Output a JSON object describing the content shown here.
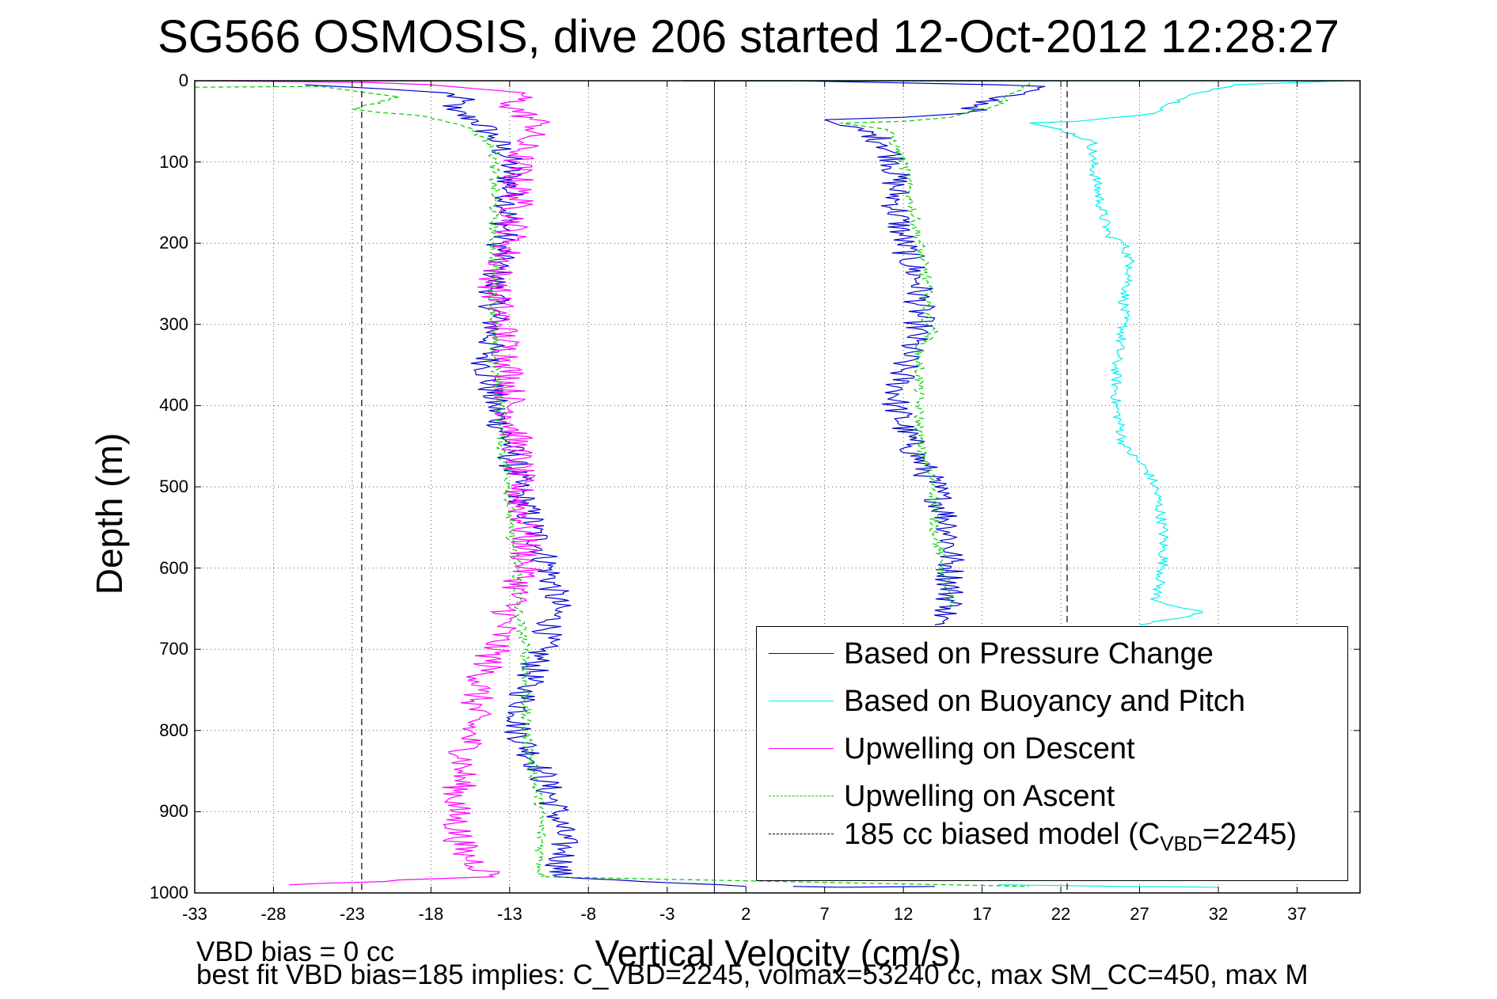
{
  "chart_data": {
    "type": "line",
    "title": "SG566 OSMOSIS, dive 206 started 12-Oct-2012 12:28:27",
    "xlabel": "Vertical Velocity (cm/s)",
    "ylabel": "Depth (m)",
    "xlim": [
      -33,
      41
    ],
    "ylim": [
      1000,
      0
    ],
    "y_reversed": true,
    "grid": true,
    "x_ticks": [
      "-33",
      "-28",
      "-23",
      "-18",
      "-13",
      "-8",
      "-3",
      "2",
      "7",
      "12",
      "17",
      "22",
      "27",
      "32",
      "37"
    ],
    "y_ticks": [
      "0",
      "100",
      "200",
      "300",
      "400",
      "500",
      "600",
      "700",
      "800",
      "900",
      "1000"
    ],
    "legend_position": "bottom-right",
    "series": [
      {
        "name": "Based on Pressure Change",
        "color": "#0000cc",
        "style": "solid",
        "segments": [
          {
            "points": [
              [
                -26,
                5
              ],
              [
                -21,
                10
              ],
              [
                -17,
                15
              ],
              [
                -16,
                25
              ],
              [
                -17,
                35
              ],
              [
                -15,
                50
              ],
              [
                -14,
                70
              ],
              [
                -13,
                100
              ],
              [
                -13,
                150
              ],
              [
                -13.5,
                200
              ],
              [
                -14,
                250
              ],
              [
                -14,
                300
              ],
              [
                -14.5,
                350
              ],
              [
                -14,
                400
              ],
              [
                -13,
                450
              ],
              [
                -12.5,
                500
              ],
              [
                -11.5,
                550
              ],
              [
                -10.5,
                600
              ],
              [
                -10,
                650
              ],
              [
                -11,
                700
              ],
              [
                -12,
                750
              ],
              [
                -12.5,
                800
              ],
              [
                -11,
                850
              ],
              [
                -10,
                900
              ],
              [
                -9.5,
                950
              ],
              [
                -10,
                980
              ],
              [
                2,
                992
              ]
            ]
          },
          {
            "points": [
              [
                -2,
                0
              ],
              [
                -0.5,
                0
              ],
              [
                5,
                0
              ],
              [
                18,
                5
              ],
              [
                21,
                7
              ],
              [
                18,
                20
              ],
              [
                16,
                40
              ],
              [
                12,
                45
              ],
              [
                7,
                48
              ],
              [
                8,
                55
              ],
              [
                10,
                65
              ],
              [
                11,
                80
              ],
              [
                11.5,
                100
              ],
              [
                11.5,
                150
              ],
              [
                12,
                200
              ],
              [
                13,
                250
              ],
              [
                13,
                300
              ],
              [
                12,
                350
              ],
              [
                11.5,
                400
              ],
              [
                12.5,
                450
              ],
              [
                14,
                500
              ],
              [
                15,
                550
              ],
              [
                15,
                600
              ],
              [
                15,
                650
              ],
              [
                14,
                670
              ]
            ]
          },
          {
            "points": [
              [
                5,
                992
              ],
              [
                8,
                993
              ],
              [
                14,
                992
              ]
            ]
          }
        ]
      },
      {
        "name": "Based on Buoyancy and Pitch",
        "color": "#00eeee",
        "style": "solid",
        "segments": [
          {
            "points": [
              [
                2,
                0
              ],
              [
                40,
                0
              ],
              [
                33,
                5
              ],
              [
                30,
                20
              ],
              [
                28,
                40
              ],
              [
                23,
                50
              ],
              [
                20,
                52
              ],
              [
                22,
                60
              ],
              [
                24,
                75
              ],
              [
                24,
                100
              ],
              [
                24.5,
                150
              ],
              [
                25,
                190
              ],
              [
                26,
                200
              ],
              [
                26.5,
                230
              ],
              [
                26,
                270
              ],
              [
                26,
                300
              ],
              [
                25.5,
                350
              ],
              [
                25.5,
                400
              ],
              [
                26,
                450
              ],
              [
                27.5,
                480
              ],
              [
                28,
                500
              ],
              [
                28.5,
                550
              ],
              [
                28.5,
                600
              ],
              [
                28,
                640
              ],
              [
                31,
                655
              ],
              [
                27,
                670
              ]
            ]
          },
          {
            "points": [
              [
                18,
                990
              ],
              [
                26,
                992
              ],
              [
                32,
                993
              ]
            ]
          }
        ]
      },
      {
        "name": "Upwelling on Descent",
        "color": "#ff00ff",
        "style": "solid",
        "segments": [
          {
            "points": [
              [
                -33,
                0
              ],
              [
                -22,
                2
              ],
              [
                -18,
                5
              ],
              [
                -15,
                10
              ],
              [
                -12,
                15
              ],
              [
                -13,
                30
              ],
              [
                -11,
                55
              ],
              [
                -12,
                70
              ],
              [
                -12.5,
                100
              ],
              [
                -12.5,
                150
              ],
              [
                -13,
                200
              ],
              [
                -14,
                250
              ],
              [
                -13.5,
                300
              ],
              [
                -13,
                350
              ],
              [
                -13,
                400
              ],
              [
                -12.5,
                450
              ],
              [
                -12.5,
                500
              ],
              [
                -12,
                550
              ],
              [
                -12,
                600
              ],
              [
                -13,
                650
              ],
              [
                -14,
                700
              ],
              [
                -15,
                750
              ],
              [
                -15.5,
                800
              ],
              [
                -16,
                850
              ],
              [
                -16.5,
                900
              ],
              [
                -16,
                950
              ],
              [
                -14,
                980
              ],
              [
                -27,
                990
              ]
            ]
          }
        ]
      },
      {
        "name": "Upwelling on Ascent",
        "color": "#00cc00",
        "style": "dashed",
        "segments": [
          {
            "points": [
              [
                -33,
                8
              ],
              [
                -25,
                7
              ],
              [
                -22,
                15
              ],
              [
                -20,
                20
              ],
              [
                -23,
                35
              ],
              [
                -18,
                45
              ],
              [
                -16,
                55
              ],
              [
                -15,
                65
              ],
              [
                -14,
                80
              ],
              [
                -14,
                100
              ],
              [
                -14,
                150
              ],
              [
                -14,
                200
              ],
              [
                -14,
                250
              ],
              [
                -14,
                300
              ],
              [
                -14,
                350
              ],
              [
                -13.5,
                400
              ],
              [
                -13.5,
                450
              ],
              [
                -13,
                500
              ],
              [
                -13,
                550
              ],
              [
                -12.5,
                600
              ],
              [
                -12.5,
                650
              ],
              [
                -12,
                700
              ],
              [
                -12,
                750
              ],
              [
                -12,
                800
              ],
              [
                -11.5,
                850
              ],
              [
                -11,
                900
              ],
              [
                -11,
                950
              ],
              [
                -11,
                980
              ],
              [
                20,
                992
              ]
            ]
          },
          {
            "points": [
              [
                -2,
                0
              ],
              [
                20,
                0
              ],
              [
                20,
                5
              ],
              [
                19,
                15
              ],
              [
                18,
                30
              ],
              [
                15,
                45
              ],
              [
                12,
                50
              ],
              [
                8,
                52
              ],
              [
                11,
                60
              ],
              [
                11.5,
                80
              ],
              [
                12,
                100
              ],
              [
                12.5,
                150
              ],
              [
                13,
                200
              ],
              [
                13.5,
                250
              ],
              [
                13.5,
                300
              ],
              [
                14,
                305
              ],
              [
                13,
                330
              ],
              [
                13,
                400
              ],
              [
                13,
                450
              ],
              [
                14,
                500
              ],
              [
                14,
                550
              ],
              [
                14.5,
                600
              ],
              [
                15,
                650
              ]
            ]
          }
        ]
      },
      {
        "name": "185 cc biased model (C_VBD=2245)",
        "color": "#000000",
        "style": "dashed",
        "segments": [
          {
            "points": [
              [
                -22.4,
                0
              ],
              [
                -22.4,
                1000
              ]
            ]
          },
          {
            "points": [
              [
                22.4,
                0
              ],
              [
                22.4,
                1000
              ]
            ]
          }
        ]
      }
    ],
    "zero_line_x": 0
  },
  "legend": {
    "items": [
      {
        "label": "Based on Pressure Change",
        "color": "#0000cc",
        "style": "solid"
      },
      {
        "label": "Based on Buoyancy and Pitch",
        "color": "#00eeee",
        "style": "solid"
      },
      {
        "label": "Upwelling on Descent",
        "color": "#ff00ff",
        "style": "solid"
      },
      {
        "label": "Upwelling on Ascent",
        "color": "#00cc00",
        "style": "dashed"
      }
    ],
    "model_label_pre": "185 cc biased model (C",
    "model_label_sub": "VBD",
    "model_label_post": "=2245)"
  },
  "footer": {
    "line1": "VBD bias = 0 cc",
    "line2": "best fit VBD bias=185 implies: C_VBD=2245, volmax=53240 cc, max SM_CC=450, max M"
  }
}
